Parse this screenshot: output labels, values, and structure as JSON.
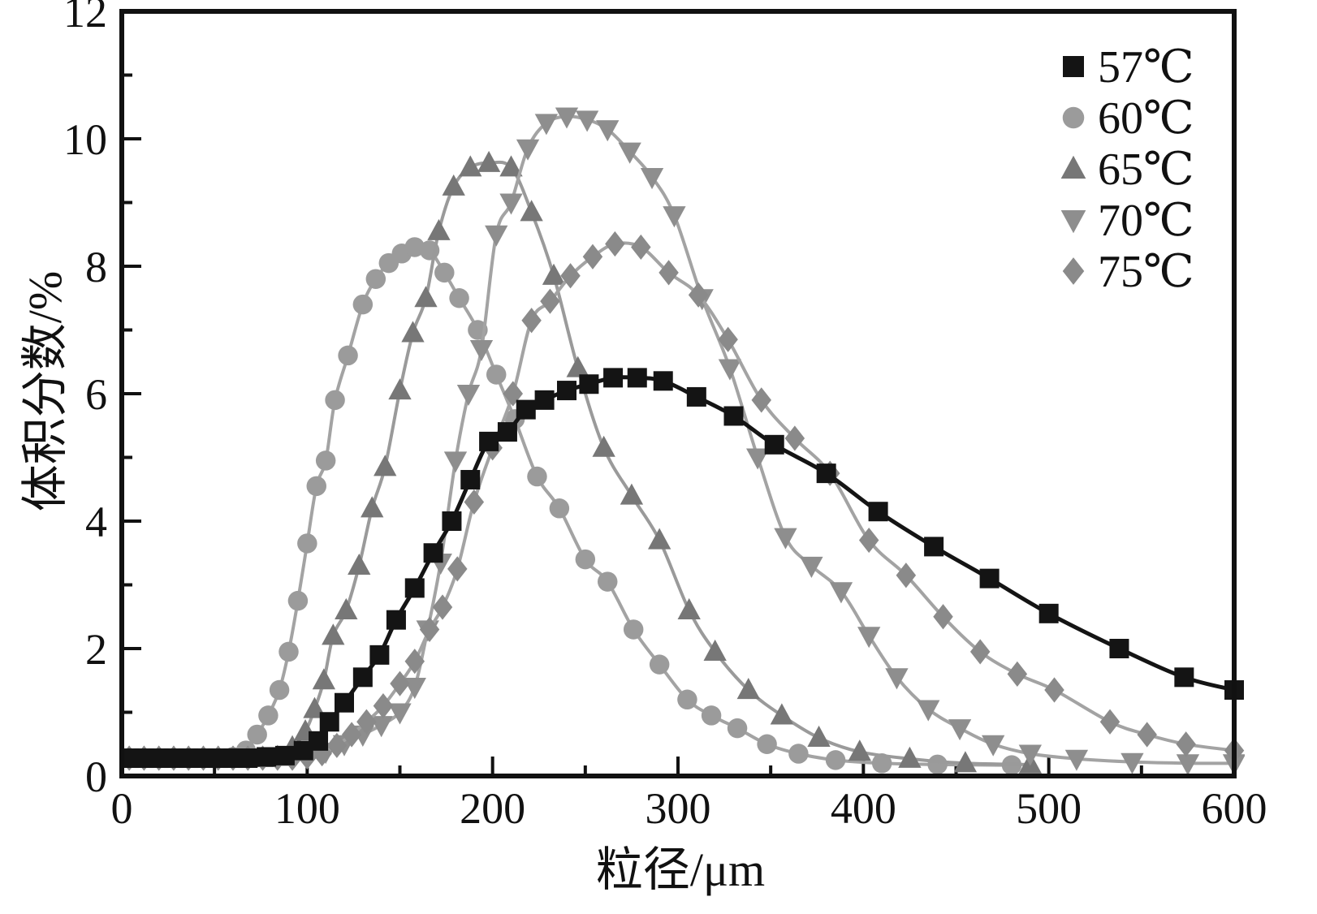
{
  "chart_data": {
    "type": "line",
    "title": "",
    "xlabel": "粒径/μm",
    "ylabel": "体积分数/%",
    "xlim": [
      0,
      600
    ],
    "ylim": [
      0,
      12
    ],
    "x_ticks": [
      0,
      100,
      200,
      300,
      400,
      500,
      600
    ],
    "y_ticks": [
      0,
      2,
      4,
      6,
      8,
      10,
      12
    ],
    "x_minor_step": 50,
    "y_minor_step": 1,
    "grid": false,
    "legend_position": "top-right",
    "frame_color": "#111111",
    "series": [
      {
        "id": "57c",
        "name": "57℃",
        "marker": "square",
        "marker_color": "#141414",
        "line_color": "#141414",
        "points": [
          [
            4,
            0.28
          ],
          [
            12,
            0.28
          ],
          [
            20,
            0.28
          ],
          [
            28,
            0.28
          ],
          [
            36,
            0.28
          ],
          [
            44,
            0.28
          ],
          [
            52,
            0.28
          ],
          [
            60,
            0.28
          ],
          [
            68,
            0.28
          ],
          [
            78,
            0.3
          ],
          [
            88,
            0.32
          ],
          [
            98,
            0.4
          ],
          [
            106,
            0.55
          ],
          [
            112,
            0.85
          ],
          [
            120,
            1.15
          ],
          [
            130,
            1.55
          ],
          [
            139,
            1.9
          ],
          [
            148,
            2.45
          ],
          [
            158,
            2.95
          ],
          [
            168,
            3.5
          ],
          [
            178,
            4.0
          ],
          [
            188,
            4.65
          ],
          [
            198,
            5.25
          ],
          [
            208,
            5.4
          ],
          [
            218,
            5.75
          ],
          [
            228,
            5.9
          ],
          [
            240,
            6.05
          ],
          [
            252,
            6.15
          ],
          [
            265,
            6.25
          ],
          [
            278,
            6.25
          ],
          [
            292,
            6.2
          ],
          [
            310,
            5.95
          ],
          [
            330,
            5.65
          ],
          [
            352,
            5.2
          ],
          [
            380,
            4.75
          ],
          [
            408,
            4.15
          ],
          [
            438,
            3.6
          ],
          [
            468,
            3.1
          ],
          [
            500,
            2.55
          ],
          [
            538,
            2.0
          ],
          [
            573,
            1.55
          ],
          [
            600,
            1.35
          ]
        ]
      },
      {
        "id": "60c",
        "name": "60℃",
        "marker": "circle",
        "marker_color": "#9b9b9b",
        "line_color": "#a3a3a3",
        "points": [
          [
            4,
            0.28
          ],
          [
            12,
            0.28
          ],
          [
            20,
            0.28
          ],
          [
            28,
            0.28
          ],
          [
            36,
            0.28
          ],
          [
            44,
            0.28
          ],
          [
            52,
            0.28
          ],
          [
            60,
            0.3
          ],
          [
            67,
            0.4
          ],
          [
            73,
            0.65
          ],
          [
            79,
            0.95
          ],
          [
            85,
            1.35
          ],
          [
            90,
            1.95
          ],
          [
            95,
            2.75
          ],
          [
            100,
            3.65
          ],
          [
            105,
            4.55
          ],
          [
            110,
            4.95
          ],
          [
            115,
            5.9
          ],
          [
            122,
            6.6
          ],
          [
            130,
            7.4
          ],
          [
            137,
            7.8
          ],
          [
            144,
            8.05
          ],
          [
            151,
            8.2
          ],
          [
            158,
            8.3
          ],
          [
            166,
            8.25
          ],
          [
            174,
            7.9
          ],
          [
            182,
            7.5
          ],
          [
            192,
            7.0
          ],
          [
            202,
            6.3
          ],
          [
            212,
            5.6
          ],
          [
            224,
            4.7
          ],
          [
            236,
            4.2
          ],
          [
            250,
            3.4
          ],
          [
            262,
            3.05
          ],
          [
            276,
            2.3
          ],
          [
            290,
            1.75
          ],
          [
            305,
            1.2
          ],
          [
            318,
            0.95
          ],
          [
            332,
            0.75
          ],
          [
            348,
            0.5
          ],
          [
            365,
            0.35
          ],
          [
            385,
            0.25
          ],
          [
            410,
            0.2
          ],
          [
            440,
            0.18
          ],
          [
            480,
            0.17
          ]
        ]
      },
      {
        "id": "65c",
        "name": "65℃",
        "marker": "triangle-up",
        "marker_color": "#777777",
        "line_color": "#9a9a9a",
        "points": [
          [
            4,
            0.28
          ],
          [
            12,
            0.28
          ],
          [
            20,
            0.28
          ],
          [
            28,
            0.28
          ],
          [
            36,
            0.28
          ],
          [
            44,
            0.28
          ],
          [
            52,
            0.28
          ],
          [
            60,
            0.28
          ],
          [
            68,
            0.28
          ],
          [
            76,
            0.28
          ],
          [
            84,
            0.3
          ],
          [
            92,
            0.45
          ],
          [
            99,
            0.7
          ],
          [
            104,
            1.05
          ],
          [
            109,
            1.5
          ],
          [
            114,
            2.2
          ],
          [
            121,
            2.6
          ],
          [
            128,
            3.3
          ],
          [
            135,
            4.2
          ],
          [
            142,
            4.85
          ],
          [
            150,
            6.05
          ],
          [
            157,
            6.95
          ],
          [
            164,
            7.5
          ],
          [
            171,
            8.55
          ],
          [
            179,
            9.25
          ],
          [
            188,
            9.55
          ],
          [
            198,
            9.62
          ],
          [
            210,
            9.55
          ],
          [
            221,
            8.85
          ],
          [
            233,
            7.85
          ],
          [
            246,
            6.4
          ],
          [
            260,
            5.15
          ],
          [
            275,
            4.4
          ],
          [
            290,
            3.7
          ],
          [
            306,
            2.6
          ],
          [
            320,
            1.95
          ],
          [
            338,
            1.35
          ],
          [
            356,
            0.95
          ],
          [
            376,
            0.6
          ],
          [
            398,
            0.38
          ],
          [
            425,
            0.27
          ],
          [
            455,
            0.2
          ],
          [
            490,
            0.18
          ]
        ]
      },
      {
        "id": "70c",
        "name": "70℃",
        "marker": "triangle-down",
        "marker_color": "#8e8e8e",
        "line_color": "#a3a3a3",
        "points": [
          [
            4,
            0.28
          ],
          [
            12,
            0.28
          ],
          [
            20,
            0.28
          ],
          [
            28,
            0.28
          ],
          [
            36,
            0.28
          ],
          [
            44,
            0.28
          ],
          [
            52,
            0.28
          ],
          [
            60,
            0.28
          ],
          [
            68,
            0.28
          ],
          [
            76,
            0.28
          ],
          [
            84,
            0.28
          ],
          [
            92,
            0.28
          ],
          [
            100,
            0.3
          ],
          [
            110,
            0.38
          ],
          [
            120,
            0.5
          ],
          [
            130,
            0.65
          ],
          [
            140,
            0.8
          ],
          [
            150,
            1.0
          ],
          [
            158,
            1.4
          ],
          [
            165,
            2.3
          ],
          [
            172,
            3.35
          ],
          [
            180,
            4.95
          ],
          [
            187,
            6.0
          ],
          [
            194,
            6.7
          ],
          [
            202,
            8.5
          ],
          [
            210,
            9.0
          ],
          [
            219,
            9.85
          ],
          [
            229,
            10.25
          ],
          [
            240,
            10.35
          ],
          [
            251,
            10.3
          ],
          [
            262,
            10.15
          ],
          [
            274,
            9.8
          ],
          [
            286,
            9.4
          ],
          [
            298,
            8.8
          ],
          [
            313,
            7.5
          ],
          [
            328,
            6.4
          ],
          [
            343,
            5.0
          ],
          [
            358,
            3.75
          ],
          [
            372,
            3.3
          ],
          [
            388,
            2.9
          ],
          [
            403,
            2.2
          ],
          [
            418,
            1.55
          ],
          [
            435,
            1.05
          ],
          [
            452,
            0.75
          ],
          [
            470,
            0.5
          ],
          [
            490,
            0.35
          ],
          [
            515,
            0.27
          ],
          [
            545,
            0.22
          ],
          [
            575,
            0.2
          ],
          [
            600,
            0.2
          ]
        ]
      },
      {
        "id": "75c",
        "name": "75℃",
        "marker": "diamond",
        "marker_color": "#8a8a8a",
        "line_color": "#a3a3a3",
        "points": [
          [
            4,
            0.28
          ],
          [
            12,
            0.28
          ],
          [
            20,
            0.28
          ],
          [
            28,
            0.28
          ],
          [
            36,
            0.28
          ],
          [
            44,
            0.28
          ],
          [
            52,
            0.28
          ],
          [
            60,
            0.28
          ],
          [
            68,
            0.28
          ],
          [
            76,
            0.28
          ],
          [
            84,
            0.28
          ],
          [
            92,
            0.28
          ],
          [
            100,
            0.3
          ],
          [
            108,
            0.35
          ],
          [
            116,
            0.48
          ],
          [
            124,
            0.65
          ],
          [
            132,
            0.85
          ],
          [
            141,
            1.1
          ],
          [
            150,
            1.45
          ],
          [
            158,
            1.8
          ],
          [
            166,
            2.3
          ],
          [
            173,
            2.65
          ],
          [
            181,
            3.25
          ],
          [
            190,
            4.3
          ],
          [
            200,
            5.15
          ],
          [
            211,
            6.0
          ],
          [
            221,
            7.15
          ],
          [
            231,
            7.45
          ],
          [
            242,
            7.85
          ],
          [
            254,
            8.15
          ],
          [
            266,
            8.35
          ],
          [
            280,
            8.3
          ],
          [
            295,
            7.9
          ],
          [
            311,
            7.55
          ],
          [
            327,
            6.85
          ],
          [
            345,
            5.9
          ],
          [
            363,
            5.3
          ],
          [
            382,
            4.75
          ],
          [
            403,
            3.7
          ],
          [
            423,
            3.15
          ],
          [
            443,
            2.5
          ],
          [
            463,
            1.95
          ],
          [
            483,
            1.6
          ],
          [
            503,
            1.35
          ],
          [
            533,
            0.85
          ],
          [
            553,
            0.65
          ],
          [
            574,
            0.5
          ],
          [
            600,
            0.4
          ]
        ]
      }
    ]
  }
}
